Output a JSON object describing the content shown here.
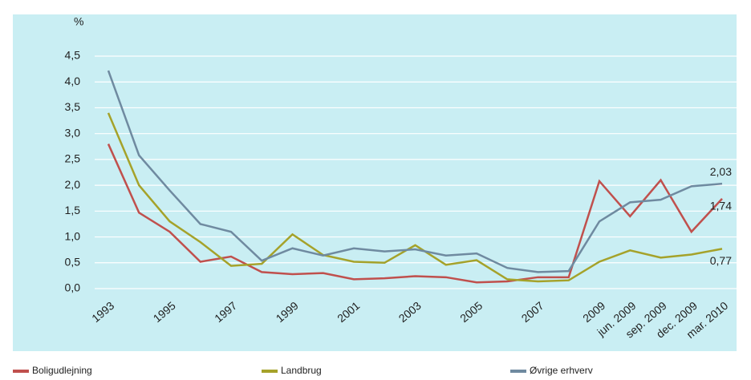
{
  "chart_data": {
    "type": "line",
    "y_unit_label": "%",
    "categories": [
      "1993",
      null,
      "1995",
      null,
      "1997",
      null,
      "1999",
      null,
      "2001",
      null,
      "2003",
      null,
      "2005",
      null,
      "2007",
      null,
      "2009",
      "jun. 2009",
      "sep. 2009",
      "dec. 2009",
      "mar. 2010"
    ],
    "series": [
      {
        "name": "Boligudlejning",
        "color": "#c0504d",
        "values": [
          2.8,
          1.47,
          1.1,
          0.52,
          0.62,
          0.32,
          0.28,
          0.3,
          0.18,
          0.2,
          0.24,
          0.22,
          0.12,
          0.14,
          0.22,
          0.22,
          2.08,
          1.4,
          2.1,
          1.1,
          1.74
        ],
        "value_labels": [
          null,
          null,
          null,
          null,
          null,
          null,
          null,
          null,
          null,
          null,
          null,
          null,
          null,
          null,
          null,
          null,
          null,
          null,
          null,
          null,
          "1,74"
        ]
      },
      {
        "name": "Landbrug",
        "color": "#a5a22a",
        "values": [
          3.4,
          2.0,
          1.3,
          0.9,
          0.44,
          0.48,
          1.05,
          0.65,
          0.52,
          0.5,
          0.84,
          0.46,
          0.55,
          0.18,
          0.14,
          0.16,
          0.52,
          0.74,
          0.6,
          0.66,
          0.77
        ],
        "value_labels": [
          null,
          null,
          null,
          null,
          null,
          null,
          null,
          null,
          null,
          null,
          null,
          null,
          null,
          null,
          null,
          null,
          null,
          null,
          null,
          null,
          "0,77"
        ]
      },
      {
        "name": "Øvrige erhverv",
        "color": "#6f8aa0",
        "values": [
          4.22,
          2.58,
          1.9,
          1.25,
          1.1,
          0.54,
          0.78,
          0.64,
          0.78,
          0.72,
          0.76,
          0.64,
          0.68,
          0.4,
          0.32,
          0.34,
          1.3,
          1.67,
          1.72,
          1.98,
          2.03
        ],
        "value_labels": [
          null,
          null,
          null,
          null,
          null,
          null,
          null,
          null,
          null,
          null,
          null,
          null,
          null,
          null,
          null,
          null,
          null,
          null,
          null,
          null,
          "2,03"
        ]
      }
    ],
    "ylim": [
      0,
      4.5
    ],
    "yticks": [
      {
        "value": 0,
        "label": "0,0"
      },
      {
        "value": 0.5,
        "label": "0,5"
      },
      {
        "value": 1,
        "label": "1,0"
      },
      {
        "value": 1.5,
        "label": "1,5"
      },
      {
        "value": 2,
        "label": "2,0"
      },
      {
        "value": 2.5,
        "label": "2,5"
      },
      {
        "value": 3,
        "label": "3,0"
      },
      {
        "value": 3.5,
        "label": "3,5"
      },
      {
        "value": 4,
        "label": "4,0"
      },
      {
        "value": 4.5,
        "label": "4,5"
      }
    ],
    "grid": true,
    "legend": "bottom"
  }
}
